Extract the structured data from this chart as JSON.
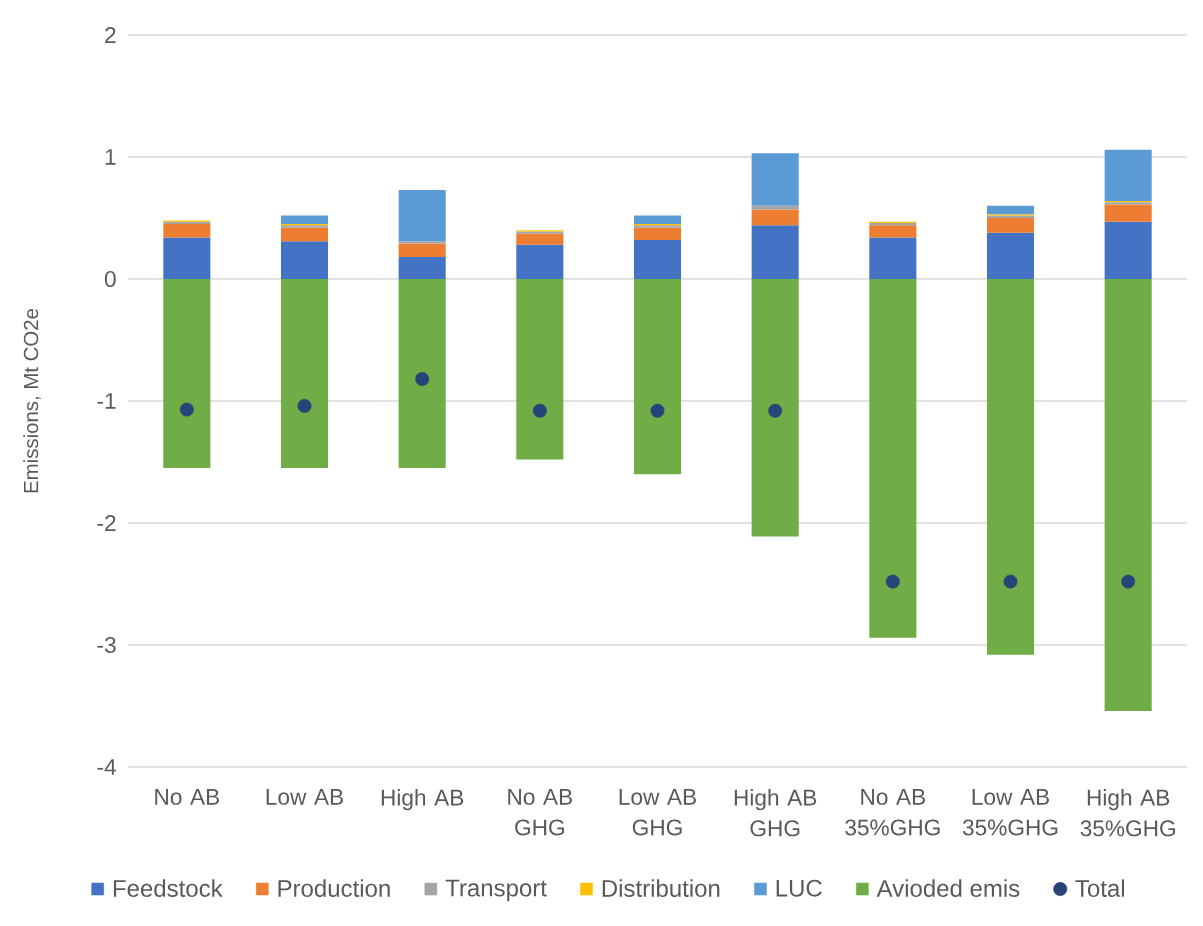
{
  "chart_data": {
    "type": "bar",
    "stacked": true,
    "ylabel": "Emissions, Mt CO2e",
    "categories": [
      "No AB",
      "Low AB",
      "High AB",
      "No AB GHG",
      "Low AB GHG",
      "High AB GHG",
      "No AB 35%GHG",
      "Low AB 35%GHG",
      "High AB 35%GHG"
    ],
    "ylim": [
      -4,
      2
    ],
    "yticks": [
      -4,
      -3,
      -2,
      -1,
      0,
      1,
      2
    ],
    "grid": "y",
    "legend": "bottom",
    "series": [
      {
        "name": "Feedstock",
        "color": "#4472c4",
        "values": [
          0.34,
          0.31,
          0.18,
          0.28,
          0.32,
          0.44,
          0.34,
          0.38,
          0.47
        ]
      },
      {
        "name": "Production",
        "color": "#ed7d31",
        "values": [
          0.11,
          0.11,
          0.11,
          0.09,
          0.1,
          0.13,
          0.1,
          0.12,
          0.14
        ]
      },
      {
        "name": "Transport",
        "color": "#a5a5a5",
        "values": [
          0.02,
          0.02,
          0.02,
          0.02,
          0.02,
          0.03,
          0.02,
          0.02,
          0.02
        ]
      },
      {
        "name": "Distribution",
        "color": "#ffc000",
        "values": [
          0.01,
          0.01,
          0,
          0.01,
          0.01,
          0,
          0.01,
          0.01,
          0.01
        ]
      },
      {
        "name": "LUC",
        "color": "#5b9bd5",
        "values": [
          0,
          0.07,
          0.42,
          0,
          0.07,
          0.43,
          0,
          0.07,
          0.42
        ]
      },
      {
        "name": "Avioded emis",
        "color": "#70ad47",
        "values": [
          -1.55,
          -1.55,
          -1.55,
          -1.48,
          -1.6,
          -2.11,
          -2.94,
          -3.08,
          -3.54
        ]
      },
      {
        "name": "Total",
        "type": "scatter",
        "marker": "circle",
        "color": "#264478",
        "values": [
          -1.07,
          -1.04,
          -0.82,
          -1.08,
          -1.08,
          -1.08,
          -2.48,
          -2.48,
          -2.48
        ]
      }
    ]
  }
}
